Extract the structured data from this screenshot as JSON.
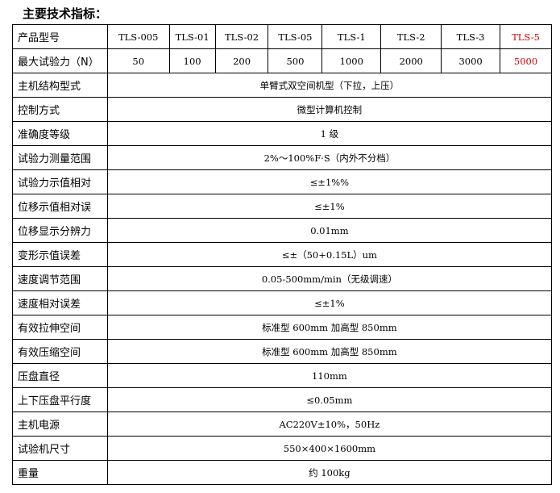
{
  "title": "主要技术指标：",
  "header": {
    "label": "产品型号",
    "models": [
      "TLS-005",
      "TLS-01",
      "TLS-02",
      "TLS-05",
      "TLS-1",
      "TLS-2",
      "TLS-3",
      "TLS-5"
    ]
  },
  "force": {
    "label": "最大试验力（N）",
    "values": [
      "50",
      "100",
      "200",
      "500",
      "1000",
      "2000",
      "3000",
      "5000"
    ]
  },
  "highlight_color": "#e00000",
  "rows": [
    {
      "label": "主机结构型式",
      "value": "单臂式双空间机型（下拉，上压）"
    },
    {
      "label": "控制方式",
      "value": "微型计算机控制"
    },
    {
      "label": "准确度等级",
      "value": "1 级"
    },
    {
      "label": "试验力测量范围",
      "value": "2%～100%F·S（内外不分档）"
    },
    {
      "label": "试验力示值相对",
      "value": "≤±1%%"
    },
    {
      "label": "位移示值相对误",
      "value": "≤±1%"
    },
    {
      "label": "位移显示分辨力",
      "value": "0.01mm"
    },
    {
      "label": "变形示值误差",
      "value": "≤±（50+0.15L）um"
    },
    {
      "label": "速度调节范围",
      "value": "0.05-500mm/min（无级调速）"
    },
    {
      "label": "速度相对误差",
      "value": "≤±1%"
    },
    {
      "label": "有效拉伸空间",
      "value": "标准型 600mm 加高型 850mm"
    },
    {
      "label": "有效压缩空间",
      "value": "标准型 600mm 加高型 850mm"
    },
    {
      "label": "压盘直径",
      "value": "110mm"
    },
    {
      "label": "上下压盘平行度",
      "value": "≤0.05mm"
    },
    {
      "label": "主机电源",
      "value": "AC220V±10%，50Hz"
    },
    {
      "label": "试验机尺寸",
      "value": "550×400×1600mm"
    },
    {
      "label": "重量",
      "value": "约 100kg"
    }
  ]
}
